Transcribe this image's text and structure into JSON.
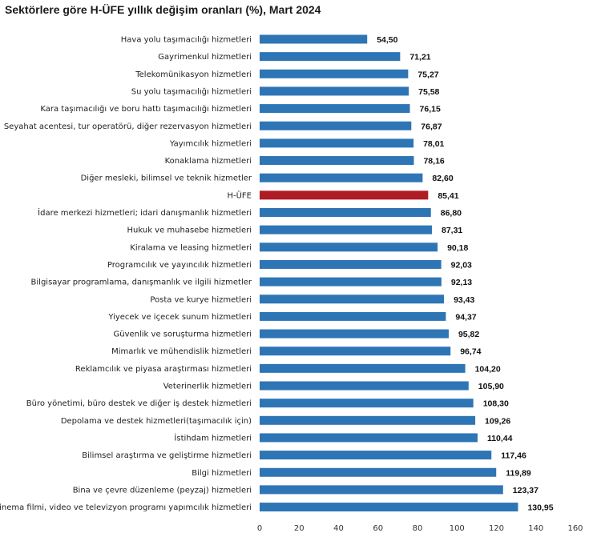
{
  "chart_data": {
    "type": "bar",
    "orientation": "horizontal",
    "title": "Sektörlere göre H-ÜFE yıllık değişim oranları (%), Mart 2024",
    "xlabel": "",
    "ylabel": "",
    "xlim": [
      0,
      160
    ],
    "xticks": [
      "0",
      "20",
      "40",
      "60",
      "80",
      "100",
      "120",
      "140",
      "160"
    ],
    "grid": false,
    "legend": "none",
    "colors": {
      "bar": "#2e75b6",
      "highlight": "#b01c24"
    },
    "highlight_category": "H-ÜFE",
    "categories": [
      "Hava yolu taşımacılığı hizmetleri",
      "Gayrimenkul hizmetleri",
      "Telekomünikasyon hizmetleri",
      "Su yolu taşımacılığı hizmetleri",
      "Kara taşımacılığı ve boru hattı taşımacılığı hizmetleri",
      "Seyahat acentesi, tur operatörü, diğer rezervasyon hizmetleri",
      "Yayımcılık hizmetleri",
      "Konaklama hizmetleri",
      "Diğer mesleki, bilimsel ve teknik hizmetler",
      "H-ÜFE",
      "İdare merkezi hizmetleri; idari danışmanlık hizmetleri",
      "Hukuk ve muhasebe hizmetleri",
      "Kiralama ve leasing hizmetleri",
      "Programcılık ve yayıncılık hizmetleri",
      "Bilgisayar programlama, danışmanlık ve ilgili hizmetler",
      "Posta ve kurye hizmetleri",
      "Yiyecek ve içecek sunum hizmetleri",
      "Güvenlik ve soruşturma hizmetleri",
      "Mimarlık ve mühendislik hizmetleri",
      "Reklamcılık ve piyasa araştırması hizmetleri",
      "Veterinerlik hizmetleri",
      "Büro yönetimi, büro destek ve diğer iş destek hizmetleri",
      "Depolama ve destek hizmetleri(taşımacılık için)",
      "İstihdam hizmetleri",
      "Bilimsel araştırma ve geliştirme hizmetleri",
      "Bilgi hizmetleri",
      "Bina ve çevre düzenleme (peyzaj) hizmetleri",
      "Sinema filmi, video ve televizyon programı yapımcılık hizmetleri"
    ],
    "values": [
      54.5,
      71.21,
      75.27,
      75.58,
      76.15,
      76.87,
      78.01,
      78.16,
      82.6,
      85.41,
      86.8,
      87.31,
      90.18,
      92.03,
      92.13,
      93.43,
      94.37,
      95.82,
      96.74,
      104.2,
      105.9,
      108.3,
      109.26,
      110.44,
      117.46,
      119.89,
      123.37,
      130.95
    ],
    "value_labels": [
      "54,50",
      "71,21",
      "75,27",
      "75,58",
      "76,15",
      "76,87",
      "78,01",
      "78,16",
      "82,60",
      "85,41",
      "86,80",
      "87,31",
      "90,18",
      "92,03",
      "92,13",
      "93,43",
      "94,37",
      "95,82",
      "96,74",
      "104,20",
      "105,90",
      "108,30",
      "109,26",
      "110,44",
      "117,46",
      "119,89",
      "123,37",
      "130,95"
    ]
  }
}
